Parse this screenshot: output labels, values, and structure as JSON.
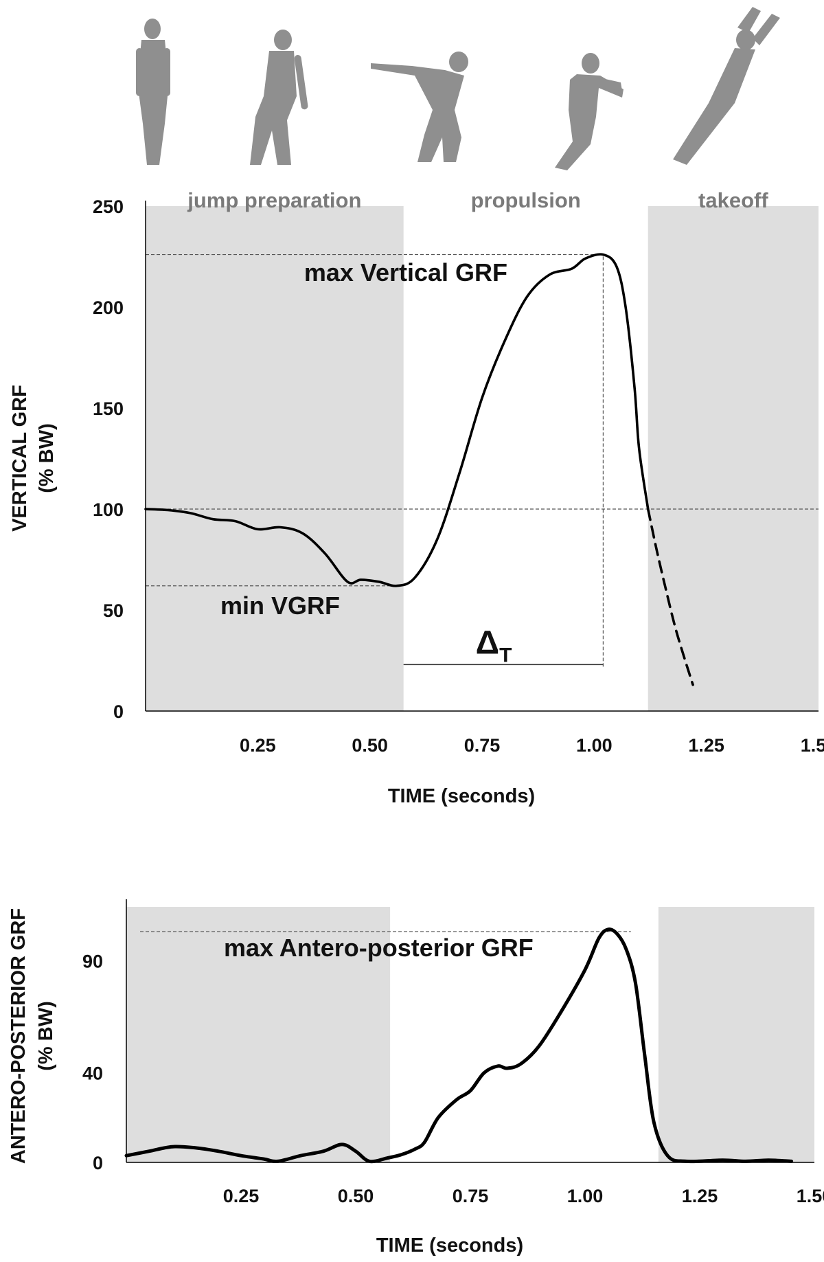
{
  "colors": {
    "shade": "#dedede",
    "curve": "#000000",
    "figure": "#8f8f8f",
    "phase_text": "#7a7a7a"
  },
  "figures": [
    "standing-figure-icon",
    "crouch-figure-icon",
    "deep-crouch-arms-back-figure-icon",
    "extension-arms-forward-figure-icon",
    "takeoff-figure-icon"
  ],
  "chart_data": [
    {
      "type": "line",
      "title": "",
      "xlabel": "TIME (seconds)",
      "ylabel": "VERTICAL GRF",
      "ylabel_unit": "(% BW)",
      "xlim": [
        0,
        1.5
      ],
      "ylim": [
        0,
        250
      ],
      "xticks": [
        "0.25",
        "0.50",
        "0.75",
        "1.00",
        "1.25",
        "1.50"
      ],
      "xtick_values": [
        0.25,
        0.5,
        0.75,
        1.0,
        1.25,
        1.5
      ],
      "yticks": [
        "0",
        "50",
        "100",
        "150",
        "200",
        "250"
      ],
      "ytick_values": [
        0,
        50,
        100,
        150,
        200,
        250
      ],
      "phases": [
        {
          "label": "jump preparation",
          "start": 0.0,
          "end": 0.575,
          "shaded": true
        },
        {
          "label": "propulsion",
          "start": 0.575,
          "end": 1.12,
          "shaded": false
        },
        {
          "label": "takeoff",
          "start": 1.12,
          "end": 1.5,
          "shaded": true
        }
      ],
      "reference_lines": [
        {
          "y": 226,
          "x_start": 0.0,
          "x_end": 1.02
        },
        {
          "y": 100,
          "x_start": 0.0,
          "x_end": 1.5
        },
        {
          "y": 62,
          "x_start": 0.0,
          "x_end": 0.575
        }
      ],
      "vertical_reference": {
        "x": 1.02,
        "y_start": 22,
        "y_end": 226
      },
      "delta_t": {
        "x_start": 0.575,
        "x_end": 1.02,
        "y": 23,
        "label": "Δ",
        "subscript": "T"
      },
      "annotations": [
        {
          "text": "max Vertical GRF",
          "x": 0.58,
          "y": 213
        },
        {
          "text": "min VGRF",
          "x": 0.3,
          "y": 48
        }
      ],
      "series": [
        {
          "style": "solid",
          "x": [
            0.0,
            0.05,
            0.1,
            0.15,
            0.2,
            0.25,
            0.3,
            0.35,
            0.4,
            0.45,
            0.48,
            0.52,
            0.56,
            0.6,
            0.65,
            0.7,
            0.75,
            0.8,
            0.85,
            0.9,
            0.95,
            0.98,
            1.02,
            1.05,
            1.07,
            1.09,
            1.1,
            1.12
          ],
          "y": [
            100,
            99.5,
            98,
            95,
            94,
            90,
            91,
            88,
            78,
            64,
            65,
            64,
            62,
            66,
            85,
            118,
            155,
            183,
            205,
            216,
            219,
            224,
            226,
            220,
            200,
            160,
            130,
            100
          ]
        },
        {
          "style": "dashed",
          "x": [
            1.12,
            1.14,
            1.16,
            1.18,
            1.2,
            1.22
          ],
          "y": [
            100,
            79,
            60,
            42,
            27,
            13
          ]
        }
      ]
    },
    {
      "type": "line",
      "title": "",
      "xlabel": "TIME (seconds)",
      "ylabel": "ANTERO-POSTERIOR GRF",
      "ylabel_unit": "(% BW)",
      "xlim": [
        0,
        1.5
      ],
      "ylim": [
        0,
        115
      ],
      "xticks": [
        "0.25",
        "0.50",
        "0.75",
        "1.00",
        "1.25",
        "1.50"
      ],
      "xtick_values": [
        0.25,
        0.5,
        0.75,
        1.0,
        1.25,
        1.5
      ],
      "yticks": [
        "0",
        "40",
        "90"
      ],
      "ytick_values": [
        0,
        40,
        90
      ],
      "phases": [
        {
          "label": "",
          "start": 0.0,
          "end": 0.575,
          "shaded": true
        },
        {
          "label": "",
          "start": 0.575,
          "end": 1.16,
          "shaded": false
        },
        {
          "label": "",
          "start": 1.16,
          "end": 1.5,
          "shaded": true
        }
      ],
      "reference_lines": [
        {
          "y": 103,
          "x_start": 0.03,
          "x_end": 1.1
        }
      ],
      "annotations": [
        {
          "text": "max Antero-posterior GRF",
          "x": 0.55,
          "y": 92
        }
      ],
      "series": [
        {
          "style": "solid",
          "x": [
            0.0,
            0.05,
            0.1,
            0.15,
            0.2,
            0.25,
            0.3,
            0.33,
            0.38,
            0.43,
            0.47,
            0.5,
            0.53,
            0.57,
            0.6,
            0.63,
            0.65,
            0.68,
            0.72,
            0.75,
            0.78,
            0.81,
            0.83,
            0.86,
            0.9,
            0.95,
            1.0,
            1.03,
            1.05,
            1.07,
            1.09,
            1.11,
            1.13,
            1.15,
            1.18,
            1.22,
            1.3,
            1.35,
            1.4,
            1.45
          ],
          "y": [
            3,
            5,
            7,
            6.5,
            5,
            3,
            1.5,
            0.5,
            3,
            5,
            8,
            5,
            0.5,
            2,
            3.5,
            6,
            9,
            20,
            28,
            32,
            40,
            43,
            42,
            44,
            52,
            68,
            86,
            100,
            104,
            102,
            95,
            80,
            48,
            18,
            3,
            0.5,
            1,
            0.5,
            1,
            0.5
          ]
        }
      ]
    }
  ]
}
